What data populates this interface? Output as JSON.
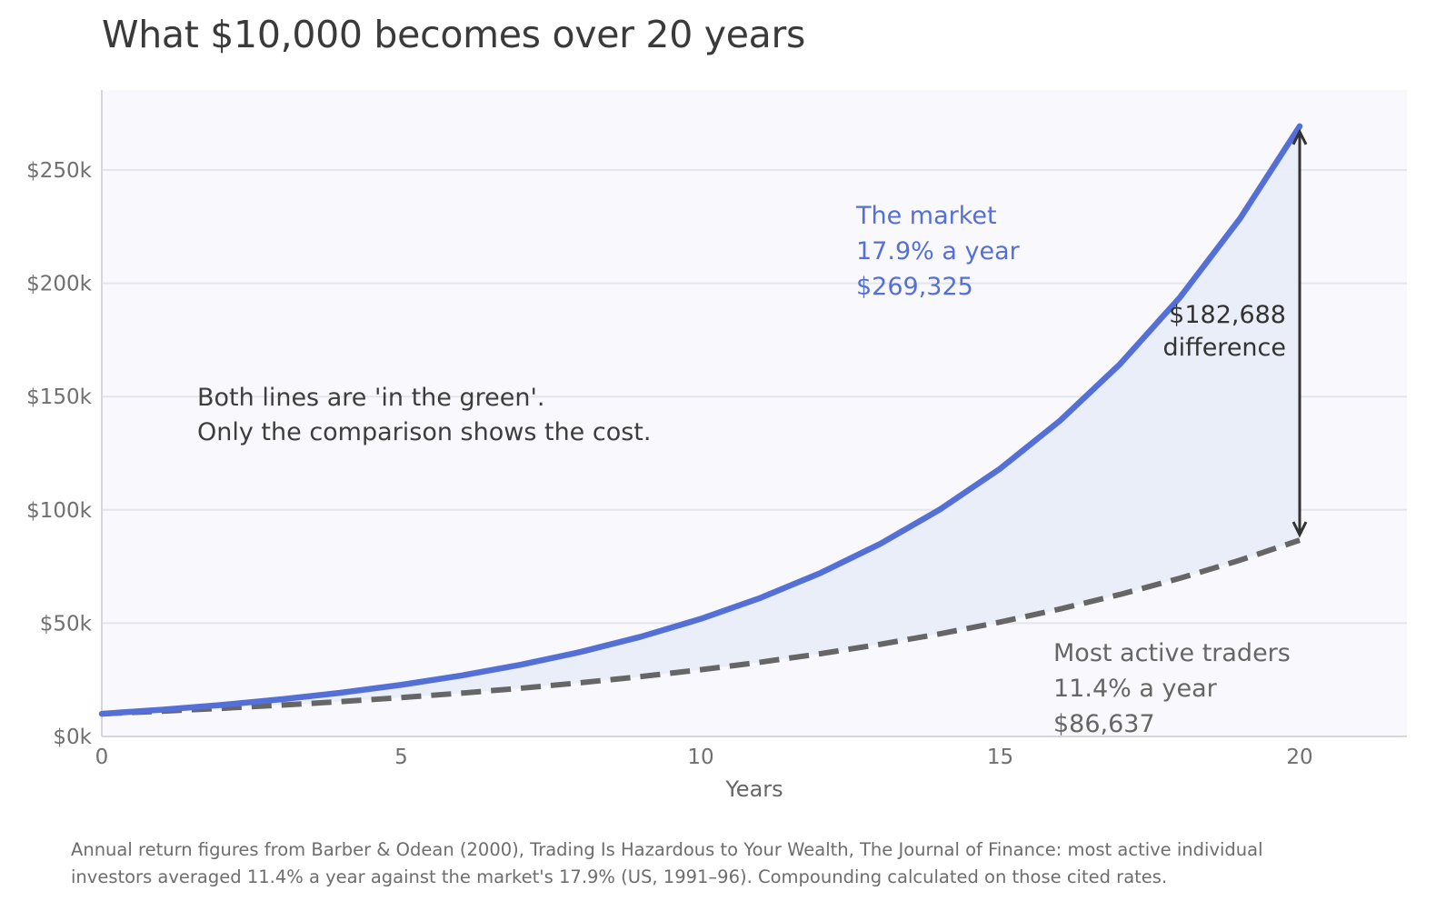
{
  "title": "What $10,000 becomes over 20 years",
  "footnote": [
    "Annual return figures from Barber & Odean (2000), Trading Is Hazardous to Your Wealth, The Journal of Finance: most active individual",
    "investors averaged 11.4% a year against the market's 17.9% (US, 1991–96). Compounding calculated on those cited rates."
  ],
  "colors": {
    "market": "#5470d6",
    "traders": "#666666",
    "gap_fill": "#e9edf8",
    "plot_bg": "#f9f8fd",
    "grid": "#e4e4ec",
    "arrow": "#333333",
    "note_text": "#3d3d3d"
  },
  "chart_data": {
    "type": "line",
    "xlabel": "Years",
    "ylabel": "",
    "xlim": [
      0,
      22
    ],
    "ylim": [
      0,
      285000
    ],
    "x_ticks": [
      0,
      5,
      10,
      15,
      20
    ],
    "x_tick_labels": [
      "0",
      "5",
      "10",
      "15",
      "20"
    ],
    "y_ticks": [
      0,
      50000,
      100000,
      150000,
      200000,
      250000
    ],
    "y_tick_labels": [
      "$0k",
      "$50k",
      "$100k",
      "$150k",
      "$200k",
      "$250k"
    ],
    "grid": true,
    "x": [
      0,
      1,
      2,
      3,
      4,
      5,
      6,
      7,
      8,
      9,
      10,
      11,
      12,
      13,
      14,
      15,
      16,
      17,
      18,
      19,
      20
    ],
    "series": [
      {
        "name": "The market",
        "style": "solid",
        "values": [
          10000,
          11790,
          13900,
          16389,
          19322,
          22781,
          26859,
          31667,
          37335,
          44018,
          51897,
          61187,
          72139,
          85052,
          100276,
          118225,
          139387,
          164337,
          193753,
          228435,
          269325
        ]
      },
      {
        "name": "Most active traders",
        "style": "dashed",
        "values": [
          10000,
          11140,
          12410,
          13824,
          15400,
          17156,
          19111,
          21290,
          23717,
          26420,
          29432,
          32787,
          36525,
          40689,
          45328,
          50495,
          56252,
          62664,
          69808,
          77766,
          86637
        ]
      }
    ],
    "annotations": {
      "market_label": [
        "The market",
        "17.9% a year",
        "$269,325"
      ],
      "traders_label": [
        "Most active traders",
        "11.4% a year",
        "$86,637"
      ],
      "difference_label": [
        "$182,688",
        "difference"
      ],
      "note": [
        "Both lines are 'in the green'.",
        "Only the comparison shows the cost."
      ]
    }
  }
}
